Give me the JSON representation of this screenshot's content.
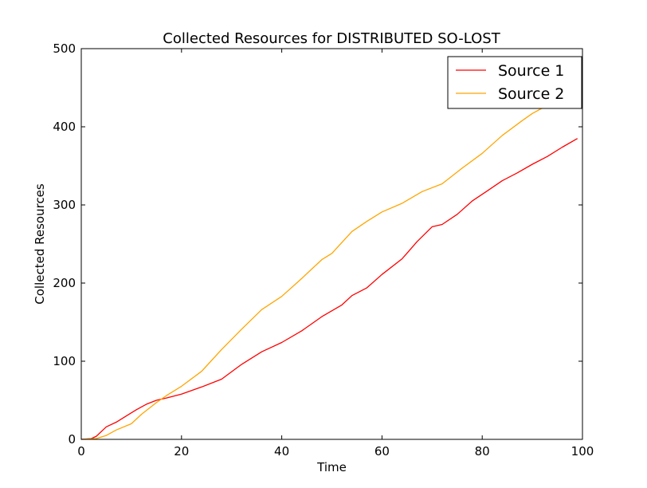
{
  "chart_data": {
    "type": "line",
    "title": "Collected Resources for DISTRIBUTED SO-LOST",
    "xlabel": "Time",
    "ylabel": "Collected Resources",
    "xlim": [
      0,
      100
    ],
    "ylim": [
      0,
      500
    ],
    "xticks": [
      "0",
      "20",
      "40",
      "60",
      "80",
      "100"
    ],
    "yticks": [
      "0",
      "100",
      "200",
      "300",
      "400",
      "500"
    ],
    "grid": false,
    "legend_position": "top-right",
    "series": [
      {
        "name": "Source 1",
        "color": "#ff0000",
        "x": [
          0,
          2,
          3,
          5,
          7,
          9,
          11,
          13,
          15,
          17,
          20,
          24,
          28,
          32,
          36,
          40,
          44,
          48,
          52,
          54,
          57,
          60,
          64,
          67,
          70,
          72,
          75,
          78,
          81,
          84,
          87,
          90,
          93,
          96,
          99
        ],
        "y": [
          0,
          1,
          4,
          16,
          22,
          30,
          38,
          45,
          50,
          53,
          58,
          67,
          77,
          96,
          112,
          124,
          139,
          157,
          172,
          184,
          194,
          211,
          231,
          253,
          272,
          275,
          288,
          305,
          318,
          331,
          341,
          352,
          362,
          374,
          385
        ]
      },
      {
        "name": "Source 2",
        "color": "#ffa500",
        "x": [
          0,
          3,
          5,
          7,
          10,
          12,
          15,
          17,
          20,
          24,
          28,
          32,
          36,
          40,
          44,
          48,
          50,
          54,
          57,
          60,
          64,
          68,
          72,
          76,
          80,
          84,
          88,
          90,
          92,
          95,
          99
        ],
        "y": [
          0,
          1,
          5,
          12,
          20,
          32,
          47,
          56,
          68,
          87,
          115,
          141,
          166,
          183,
          206,
          230,
          238,
          266,
          279,
          291,
          302,
          317,
          327,
          347,
          366,
          389,
          408,
          417,
          424,
          436,
          460
        ]
      }
    ]
  }
}
